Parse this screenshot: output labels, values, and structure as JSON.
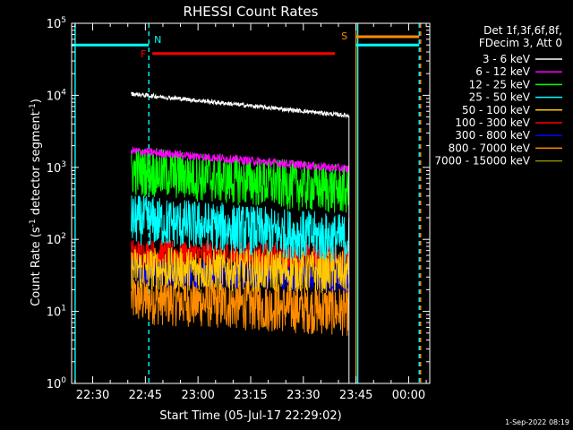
{
  "chart_data": {
    "type": "line",
    "title": "RHESSI Count Rates",
    "xlabel": "Start Time (05-Jul-17 22:29:02)",
    "ylabel_main": "Count Rate (s",
    "ylabel_sup1": "-1",
    "ylabel_mid": " detector segment",
    "ylabel_sup2": "-1",
    "ylabel_end": ")",
    "y_scale": "log",
    "ylim": [
      1,
      100000
    ],
    "xlim": [
      "22:24",
      "00:06"
    ],
    "x_ticks": [
      "22:30",
      "22:45",
      "23:00",
      "23:15",
      "23:30",
      "23:45",
      "00:00"
    ],
    "y_ticks": [
      {
        "value": 1,
        "base": "10",
        "exp": "0"
      },
      {
        "value": 10,
        "base": "10",
        "exp": "1"
      },
      {
        "value": 100,
        "base": "10",
        "exp": "2"
      },
      {
        "value": 1000,
        "base": "10",
        "exp": "3"
      },
      {
        "value": 10000,
        "base": "10",
        "exp": "4"
      },
      {
        "value": 100000,
        "base": "10",
        "exp": "5"
      }
    ],
    "legend_header": [
      "Det 1f,3f,6f,8f,",
      "FDecim 3, Att 0"
    ],
    "legend_position": "right",
    "series": [
      {
        "name": "3 - 6 keV",
        "color": "#ffffff",
        "start": 10500,
        "end": 5200,
        "noise": 0.03
      },
      {
        "name": "6 - 12 keV",
        "color": "#ff00ff",
        "start": 1700,
        "end": 950,
        "noise": 0.06
      },
      {
        "name": "12 - 25 keV",
        "color": "#00ff00",
        "start": 900,
        "end": 480,
        "noise": 0.35
      },
      {
        "name": "25 - 50 keV",
        "color": "#00ffff",
        "start": 190,
        "end": 100,
        "noise": 0.35
      },
      {
        "name": "50 - 100 keV",
        "color": "#ffc800",
        "start": 40,
        "end": 35,
        "noise": 0.3
      },
      {
        "name": "100 - 300 keV",
        "color": "#ff0000",
        "start": 65,
        "end": 55,
        "noise": 0.2
      },
      {
        "name": "300 - 800 keV",
        "color": "#0000ff",
        "start": 38,
        "end": 30,
        "noise": 0.22
      },
      {
        "name": "800 - 7000 keV",
        "color": "#ff8c00",
        "start": 15,
        "end": 10,
        "noise": 0.35
      },
      {
        "name": "7000 - 15000 keV",
        "color": "#8c8c00",
        "start": null,
        "end": null,
        "noise": 0
      }
    ],
    "series_time_range": [
      "22:41",
      "23:43"
    ],
    "flags": [
      {
        "label": "N",
        "color": "#00ffff",
        "start": "22:24",
        "end": "22:46",
        "level": 50000
      },
      {
        "label": "F",
        "color": "#ff0000",
        "start": "22:47",
        "end": "23:39",
        "level": 38000
      },
      {
        "label": "S",
        "color": "#ff8c00",
        "start": "23:45",
        "end": "00:03",
        "level": 65000
      },
      {
        "label": "",
        "color": "#00ffff",
        "start": "23:45",
        "end": "00:03",
        "level": 50000
      }
    ],
    "vlines": [
      {
        "time": "22:25",
        "color": "#00ffff",
        "style": "solid"
      },
      {
        "time": "22:46",
        "color": "#00ffff",
        "style": "dashed"
      },
      {
        "time": "23:45",
        "color": "#ff8c00",
        "style": "solid"
      },
      {
        "time": "23:45.5",
        "color": "#00ffff",
        "style": "solid"
      },
      {
        "time": "00:03",
        "color": "#00ffff",
        "style": "dashed"
      },
      {
        "time": "00:03.4",
        "color": "#ff8c00",
        "style": "dashed"
      }
    ]
  },
  "footer": {
    "timestamp": "1-Sep-2022 08:19"
  }
}
